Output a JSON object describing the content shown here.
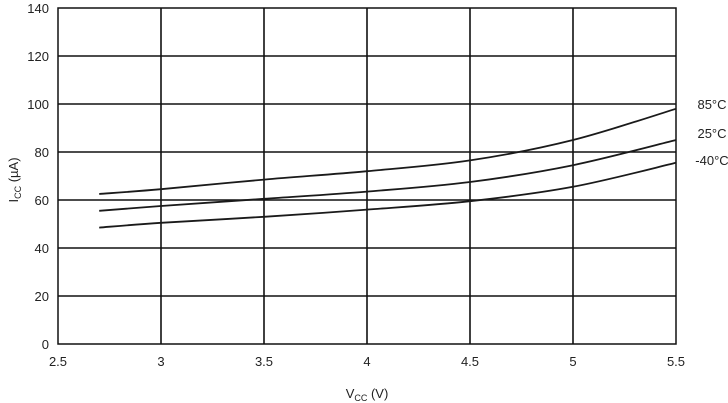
{
  "chart_data": {
    "type": "line",
    "xlabel": {
      "main": "V",
      "sub": "CC",
      "unit": " (V)"
    },
    "ylabel": {
      "main": "I",
      "sub": "CC",
      "unit": " (µA)"
    },
    "xlim": [
      2.5,
      5.5
    ],
    "ylim": [
      0,
      140
    ],
    "xticks": [
      2.5,
      3,
      3.5,
      4,
      4.5,
      5,
      5.5
    ],
    "yticks": [
      0,
      20,
      40,
      60,
      80,
      100,
      120,
      140
    ],
    "xtick_labels": [
      "2.5",
      "3",
      "3.5",
      "4",
      "4.5",
      "5",
      "5.5"
    ],
    "ytick_labels": [
      "0",
      "20",
      "40",
      "60",
      "80",
      "100",
      "120",
      "140"
    ],
    "grid": true,
    "series": [
      {
        "name": "85°C",
        "x": [
          2.7,
          3.0,
          3.5,
          4.0,
          4.5,
          5.0,
          5.5
        ],
        "y": [
          62.5,
          64.5,
          68.5,
          72,
          76.5,
          85,
          98
        ]
      },
      {
        "name": "25°C",
        "x": [
          2.7,
          3.0,
          3.5,
          4.0,
          4.5,
          5.0,
          5.5
        ],
        "y": [
          55.5,
          57.5,
          60.5,
          63.5,
          67.5,
          74.5,
          85
        ]
      },
      {
        "name": "-40°C",
        "x": [
          2.7,
          3.0,
          3.5,
          4.0,
          4.5,
          5.0,
          5.5
        ],
        "y": [
          48.5,
          50.5,
          53,
          56,
          59.5,
          65.5,
          75.5
        ]
      }
    ]
  }
}
